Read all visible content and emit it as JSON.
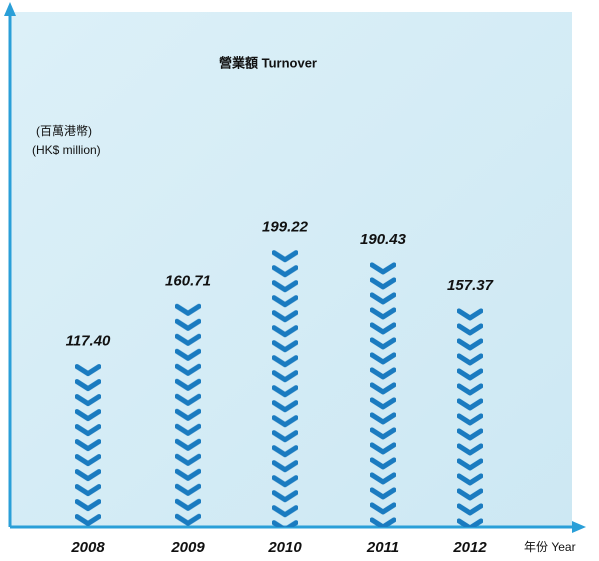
{
  "chart_data": {
    "type": "bar",
    "title": "營業額  Turnover",
    "y_label": [
      "(百萬港幣)",
      "(HK$ million)"
    ],
    "x_label": "年份  Year",
    "categories": [
      "2008",
      "2009",
      "2010",
      "2011",
      "2012"
    ],
    "values": [
      117.4,
      160.71,
      199.22,
      190.43,
      157.37
    ],
    "value_labels": [
      "117.40",
      "160.71",
      "199.22",
      "190.43",
      "157.37"
    ],
    "color": "#1a7bc0",
    "ylim": [
      0,
      370
    ]
  }
}
